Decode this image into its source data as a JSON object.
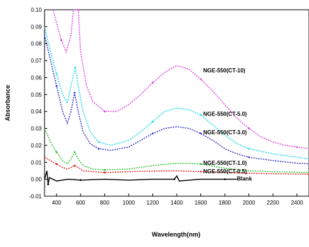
{
  "chart_data": {
    "type": "line",
    "xlabel": "Wavelength(nm)",
    "ylabel": "Absorbance",
    "xlim": [
      300,
      2500
    ],
    "ylim": [
      -0.01,
      0.1
    ],
    "xticks": [
      "400",
      "600",
      "800",
      "1000",
      "1200",
      "1400",
      "1600",
      "1800",
      "2000",
      "2200",
      "2400"
    ],
    "yticks": [
      "-0.01",
      "0.00",
      "0.01",
      "0.02",
      "0.03",
      "0.04",
      "0.05",
      "0.06",
      "0.07",
      "0.08",
      "0.09",
      "0.10"
    ],
    "grid": false,
    "series": [
      {
        "name": "NGE-550(CT-10)",
        "color": "#e040e0",
        "label_anchor": [
          1620,
          0.063
        ],
        "points": [
          [
            370,
            0.1
          ],
          [
            400,
            0.092
          ],
          [
            440,
            0.082
          ],
          [
            480,
            0.075
          ],
          [
            520,
            0.085
          ],
          [
            540,
            0.1
          ],
          [
            580,
            0.1
          ],
          [
            600,
            0.075
          ],
          [
            650,
            0.055
          ],
          [
            700,
            0.046
          ],
          [
            800,
            0.04
          ],
          [
            900,
            0.04
          ],
          [
            1000,
            0.044
          ],
          [
            1100,
            0.05
          ],
          [
            1200,
            0.057
          ],
          [
            1300,
            0.063
          ],
          [
            1400,
            0.067
          ],
          [
            1500,
            0.065
          ],
          [
            1600,
            0.059
          ],
          [
            1700,
            0.052
          ],
          [
            1800,
            0.044
          ],
          [
            1900,
            0.036
          ],
          [
            2000,
            0.03
          ],
          [
            2100,
            0.025
          ],
          [
            2200,
            0.022
          ],
          [
            2300,
            0.02
          ],
          [
            2400,
            0.019
          ],
          [
            2500,
            0.018
          ]
        ]
      },
      {
        "name": "NGE-550(CT-5.0)",
        "color": "#20d8e8",
        "label_anchor": [
          1620,
          0.0375
        ],
        "points": [
          [
            300,
            0.09
          ],
          [
            350,
            0.075
          ],
          [
            400,
            0.062
          ],
          [
            450,
            0.05
          ],
          [
            490,
            0.045
          ],
          [
            520,
            0.055
          ],
          [
            555,
            0.066
          ],
          [
            580,
            0.055
          ],
          [
            620,
            0.04
          ],
          [
            680,
            0.028
          ],
          [
            750,
            0.022
          ],
          [
            850,
            0.02
          ],
          [
            1000,
            0.023
          ],
          [
            1100,
            0.028
          ],
          [
            1200,
            0.034
          ],
          [
            1300,
            0.04
          ],
          [
            1400,
            0.042
          ],
          [
            1500,
            0.041
          ],
          [
            1600,
            0.038
          ],
          [
            1700,
            0.032
          ],
          [
            1800,
            0.026
          ],
          [
            1900,
            0.021
          ],
          [
            2000,
            0.018
          ],
          [
            2200,
            0.015
          ],
          [
            2400,
            0.013
          ],
          [
            2500,
            0.012
          ]
        ]
      },
      {
        "name": "NGE-550(CT-3.0)",
        "color": "#3030c8",
        "label_anchor": [
          1620,
          0.0265
        ],
        "points": [
          [
            300,
            0.085
          ],
          [
            350,
            0.07
          ],
          [
            400,
            0.055
          ],
          [
            450,
            0.04
          ],
          [
            490,
            0.033
          ],
          [
            520,
            0.04
          ],
          [
            550,
            0.051
          ],
          [
            580,
            0.04
          ],
          [
            620,
            0.028
          ],
          [
            680,
            0.021
          ],
          [
            750,
            0.018
          ],
          [
            850,
            0.017
          ],
          [
            1000,
            0.019
          ],
          [
            1100,
            0.023
          ],
          [
            1200,
            0.027
          ],
          [
            1300,
            0.03
          ],
          [
            1400,
            0.031
          ],
          [
            1500,
            0.03
          ],
          [
            1600,
            0.027
          ],
          [
            1700,
            0.023
          ],
          [
            1800,
            0.018
          ],
          [
            1900,
            0.015
          ],
          [
            2000,
            0.013
          ],
          [
            2200,
            0.011
          ],
          [
            2400,
            0.0095
          ],
          [
            2500,
            0.009
          ]
        ]
      },
      {
        "name": "NGE-550(CT-1.0)",
        "color": "#30c030",
        "label_anchor": [
          1620,
          0.0085
        ],
        "points": [
          [
            300,
            0.03
          ],
          [
            350,
            0.022
          ],
          [
            400,
            0.016
          ],
          [
            450,
            0.011
          ],
          [
            490,
            0.009
          ],
          [
            520,
            0.012
          ],
          [
            550,
            0.016
          ],
          [
            580,
            0.012
          ],
          [
            620,
            0.008
          ],
          [
            700,
            0.006
          ],
          [
            800,
            0.0055
          ],
          [
            1000,
            0.006
          ],
          [
            1200,
            0.008
          ],
          [
            1400,
            0.0095
          ],
          [
            1600,
            0.009
          ],
          [
            1800,
            0.0065
          ],
          [
            2000,
            0.005
          ],
          [
            2200,
            0.0045
          ],
          [
            2500,
            0.004
          ]
        ]
      },
      {
        "name": "NGE-550(CT-0.5)",
        "color": "#e02020",
        "label_anchor": [
          1620,
          0.0035
        ],
        "points": [
          [
            300,
            0.013
          ],
          [
            350,
            0.011
          ],
          [
            400,
            0.009
          ],
          [
            450,
            0.007
          ],
          [
            490,
            0.006
          ],
          [
            520,
            0.007
          ],
          [
            550,
            0.008
          ],
          [
            580,
            0.007
          ],
          [
            620,
            0.005
          ],
          [
            700,
            0.0045
          ],
          [
            800,
            0.004
          ],
          [
            1000,
            0.0045
          ],
          [
            1200,
            0.0048
          ],
          [
            1400,
            0.005
          ],
          [
            1600,
            0.0045
          ],
          [
            1800,
            0.004
          ],
          [
            2000,
            0.0035
          ],
          [
            2200,
            0.0033
          ],
          [
            2500,
            0.003
          ]
        ]
      },
      {
        "name": "Blank",
        "color": "#000000",
        "label_anchor": [
          1900,
          -0.0008
        ],
        "points": [
          [
            300,
            0.0
          ],
          [
            320,
            0.005
          ],
          [
            330,
            -0.003
          ],
          [
            340,
            0.001
          ],
          [
            400,
            -0.001
          ],
          [
            500,
            0.0
          ],
          [
            600,
            -0.0005
          ],
          [
            800,
            0.0
          ],
          [
            1000,
            -0.0005
          ],
          [
            1200,
            0.0
          ],
          [
            1380,
            0.0
          ],
          [
            1400,
            0.002
          ],
          [
            1420,
            -0.001
          ],
          [
            1600,
            0.0
          ],
          [
            1800,
            0.0
          ],
          [
            1900,
            0.0
          ]
        ]
      }
    ]
  }
}
